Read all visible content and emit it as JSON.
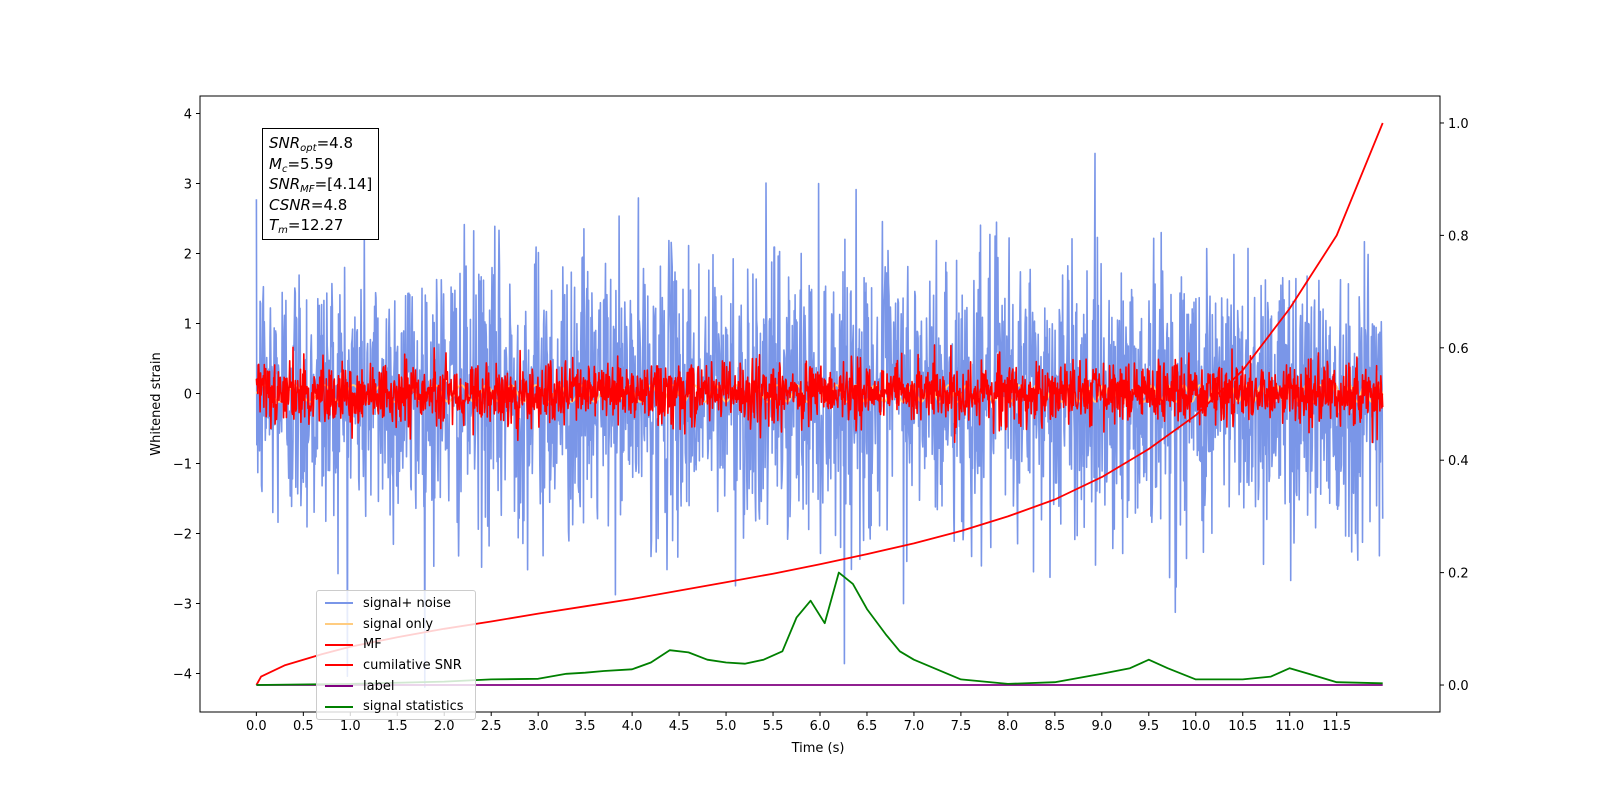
{
  "chart_data": {
    "type": "line",
    "title": "",
    "xlabel": "Time (s)",
    "ylabel": "Whitened strain",
    "y2label": "",
    "xlim": [
      -0.6,
      12.6
    ],
    "ylim": [
      -4.55,
      4.25
    ],
    "y2lim": [
      -0.048,
      1.048
    ],
    "x_ticks": [
      0.0,
      0.5,
      1.0,
      1.5,
      2.0,
      2.5,
      3.0,
      3.5,
      4.0,
      4.5,
      5.0,
      5.5,
      6.0,
      6.5,
      7.0,
      7.5,
      8.0,
      8.5,
      9.0,
      9.5,
      10.0,
      10.5,
      11.0,
      11.5
    ],
    "x_tick_labels": [
      "0.0",
      "0.5",
      "1.0",
      "1.5",
      "2.0",
      "2.5",
      "3.0",
      "3.5",
      "4.0",
      "4.5",
      "5.0",
      "5.5",
      "6.0",
      "6.5",
      "7.0",
      "7.5",
      "8.0",
      "8.5",
      "9.0",
      "9.5",
      "10.0",
      "10.5",
      "11.0",
      "11.5"
    ],
    "y_ticks": [
      4,
      3,
      2,
      1,
      0,
      -1,
      -2,
      -3,
      -4
    ],
    "y_tick_labels": [
      "4",
      "3",
      "2",
      "1",
      "0",
      "−1",
      "−2",
      "−3",
      "−4"
    ],
    "y2_ticks": [
      1.0,
      0.8,
      0.6,
      0.4,
      0.2,
      0.0
    ],
    "y2_tick_labels": [
      "1.0",
      "0.8",
      "0.6",
      "0.4",
      "0.2",
      "0.0"
    ],
    "grid": false,
    "legend_position": "lower-left",
    "annotation": {
      "snr_opt": {
        "base": "SNR",
        "sub": "opt",
        "value": "=4.8"
      },
      "mc": {
        "base": "M",
        "sub": "c",
        "value": "=5.59"
      },
      "snr_mf": {
        "base": "SNR",
        "sub": "MF",
        "value": "=[4.14]"
      },
      "csnr": {
        "base": "CSNR",
        "sub": "",
        "value": "=4.8"
      },
      "tm": {
        "base": "T",
        "sub": "m",
        "value": "=12.27"
      }
    },
    "series": [
      {
        "name": "signal+ noise",
        "color": "#7a96e8",
        "axis": "left",
        "style": "noise",
        "sigma": 1.0,
        "x_range": [
          0,
          11.99
        ]
      },
      {
        "name": "signal only",
        "color": "#ffcc80",
        "axis": "left",
        "style": "chirp",
        "amplitude": 0.12,
        "x_range": [
          0,
          11.99
        ]
      },
      {
        "name": "MF",
        "color": "#ff0000",
        "axis": "left",
        "style": "noise",
        "sigma": 0.22,
        "x_range": [
          0,
          11.99
        ]
      },
      {
        "name": "cumilative SNR",
        "color": "#ff0000",
        "axis": "right",
        "style": "curve",
        "x": [
          0.0,
          0.05,
          0.3,
          0.7,
          1.0,
          1.5,
          2.0,
          2.5,
          3.0,
          3.5,
          4.0,
          4.5,
          5.0,
          5.5,
          6.0,
          6.5,
          7.0,
          7.5,
          8.0,
          8.5,
          9.0,
          9.5,
          10.0,
          10.5,
          11.0,
          11.5,
          11.99
        ],
        "values": [
          0.0,
          0.015,
          0.035,
          0.055,
          0.068,
          0.085,
          0.1,
          0.113,
          0.127,
          0.14,
          0.153,
          0.168,
          0.183,
          0.198,
          0.215,
          0.233,
          0.252,
          0.274,
          0.3,
          0.33,
          0.37,
          0.42,
          0.48,
          0.56,
          0.67,
          0.8,
          1.0
        ]
      },
      {
        "name": "label",
        "color": "#800080",
        "axis": "right",
        "style": "curve",
        "x": [
          0.0,
          11.99
        ],
        "values": [
          0.0,
          0.0
        ]
      },
      {
        "name": "signal statistics",
        "color": "#008000",
        "axis": "right",
        "style": "curve",
        "x": [
          0.0,
          1.0,
          2.0,
          2.5,
          3.0,
          3.3,
          3.5,
          3.7,
          4.0,
          4.2,
          4.4,
          4.6,
          4.8,
          5.0,
          5.2,
          5.4,
          5.6,
          5.75,
          5.9,
          6.05,
          6.2,
          6.35,
          6.5,
          6.7,
          6.85,
          7.0,
          7.5,
          8.0,
          8.5,
          9.0,
          9.3,
          9.5,
          9.7,
          10.0,
          10.5,
          10.8,
          11.0,
          11.2,
          11.5,
          11.99
        ],
        "values": [
          0.0,
          0.002,
          0.006,
          0.01,
          0.011,
          0.02,
          0.022,
          0.025,
          0.028,
          0.04,
          0.062,
          0.058,
          0.045,
          0.04,
          0.038,
          0.045,
          0.06,
          0.12,
          0.15,
          0.11,
          0.2,
          0.18,
          0.135,
          0.09,
          0.06,
          0.045,
          0.01,
          0.002,
          0.005,
          0.02,
          0.03,
          0.045,
          0.03,
          0.01,
          0.01,
          0.015,
          0.03,
          0.02,
          0.005,
          0.003
        ]
      }
    ]
  }
}
